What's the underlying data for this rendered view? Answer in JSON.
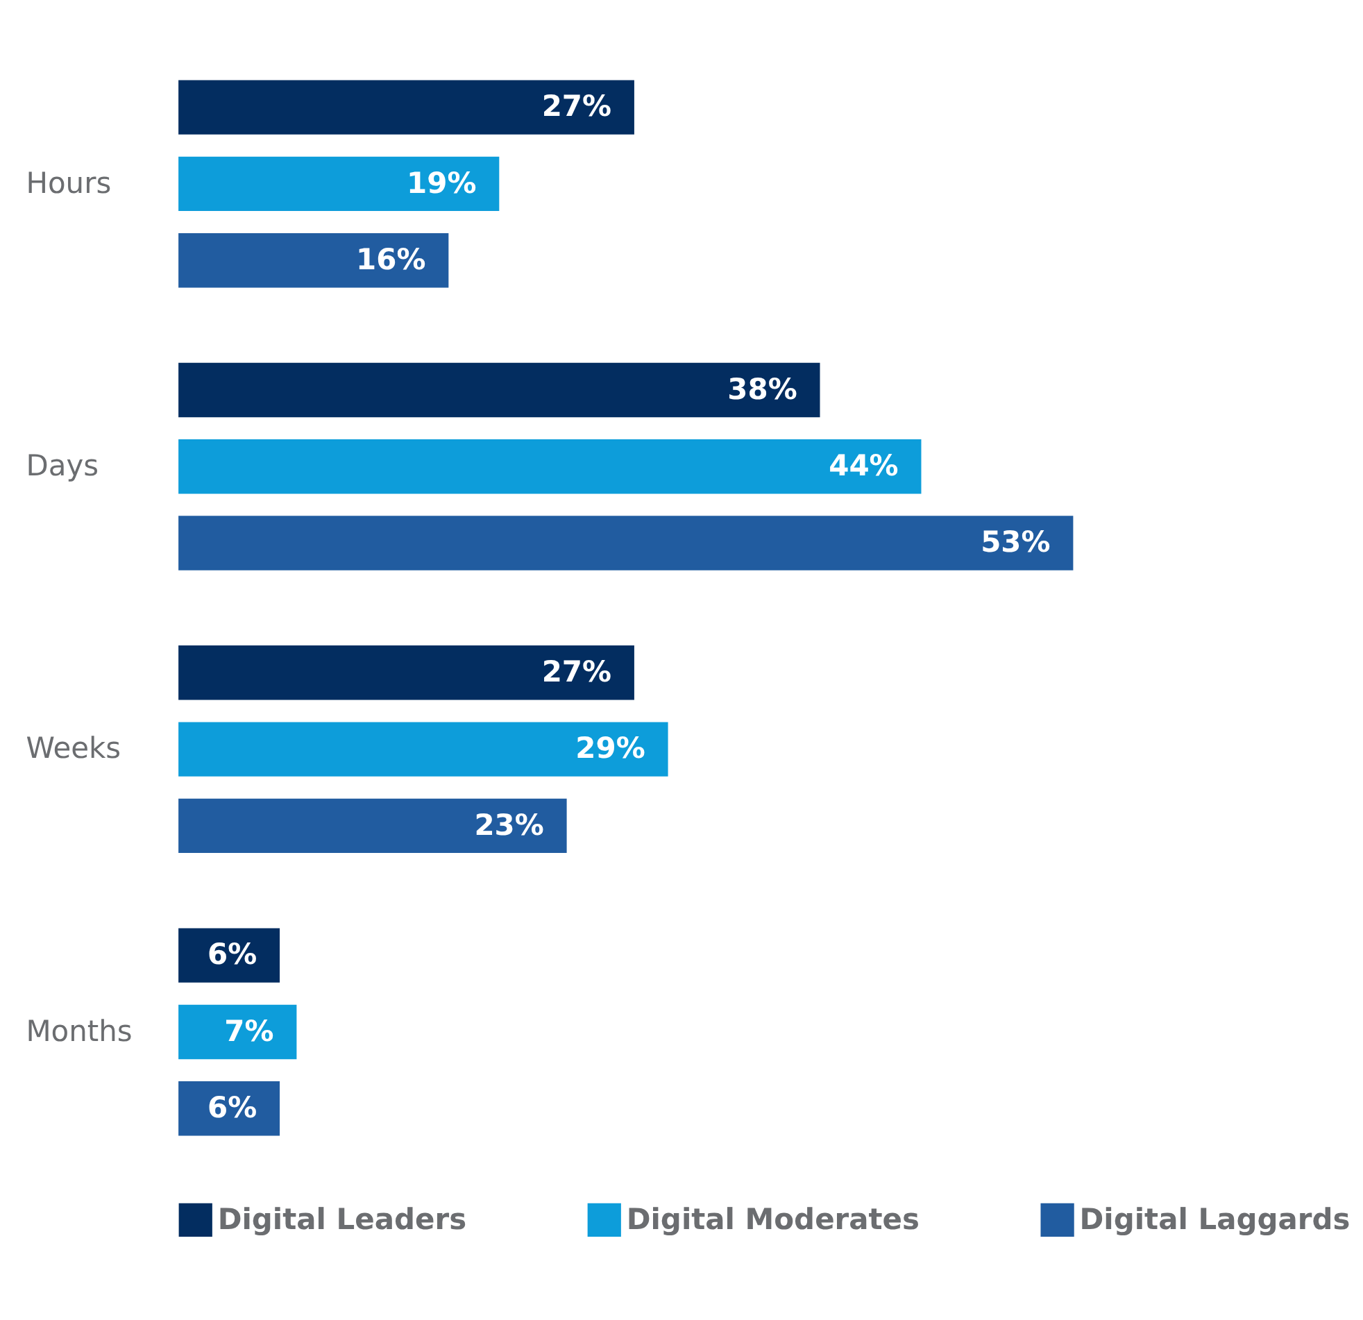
{
  "chart_data": {
    "type": "bar",
    "orientation": "horizontal",
    "categories": [
      "Hours",
      "Days",
      "Weeks",
      "Months"
    ],
    "series": [
      {
        "name": "Digital Leaders",
        "color": "#032d60",
        "values": [
          27,
          38,
          27,
          6
        ],
        "value_labels": [
          "27%",
          "38%",
          "27%",
          "6%"
        ]
      },
      {
        "name": "Digital Moderates",
        "color": "#0d9dda",
        "values": [
          19,
          44,
          29,
          7
        ],
        "value_labels": [
          "19%",
          "44%",
          "29%",
          "7%"
        ]
      },
      {
        "name": "Digital Laggards",
        "color": "#215ca0",
        "values": [
          16,
          53,
          23,
          6
        ],
        "value_labels": [
          "16%",
          "53%",
          "23%",
          "6%"
        ]
      }
    ],
    "legend": "bottom",
    "grid": false
  }
}
